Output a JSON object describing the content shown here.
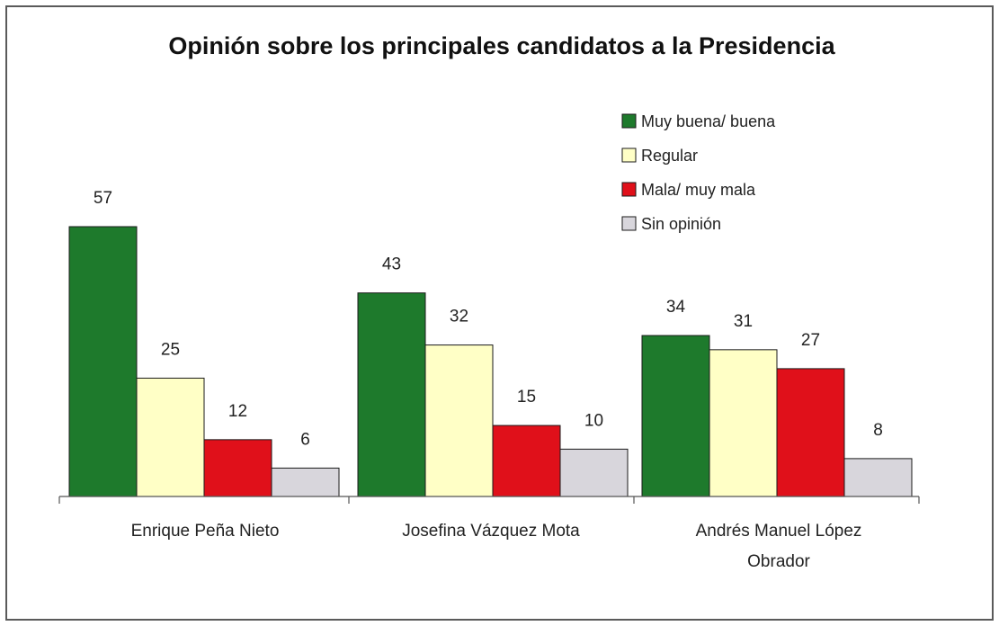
{
  "chart_data": {
    "type": "bar",
    "title": "Opinión sobre los principales candidatos a la Presidencia",
    "xlabel": "",
    "ylabel": "",
    "categories": [
      [
        "Enrique Peña Nieto"
      ],
      [
        "Josefina Vázquez Mota"
      ],
      [
        "Andrés Manuel López",
        "Obrador"
      ]
    ],
    "series": [
      {
        "name": "Muy buena/ buena",
        "color": "#1e7a2c",
        "values": [
          57,
          43,
          34
        ]
      },
      {
        "name": "Regular",
        "color": "#ffffc6",
        "values": [
          25,
          32,
          31
        ]
      },
      {
        "name": "Mala/ muy mala",
        "color": "#e0101a",
        "values": [
          12,
          15,
          27
        ]
      },
      {
        "name": "Sin opinión",
        "color": "#d8d6dc",
        "values": [
          6,
          10,
          8
        ]
      }
    ],
    "ylim": [
      0,
      60
    ],
    "grid": false,
    "legend_position": "top-right"
  }
}
